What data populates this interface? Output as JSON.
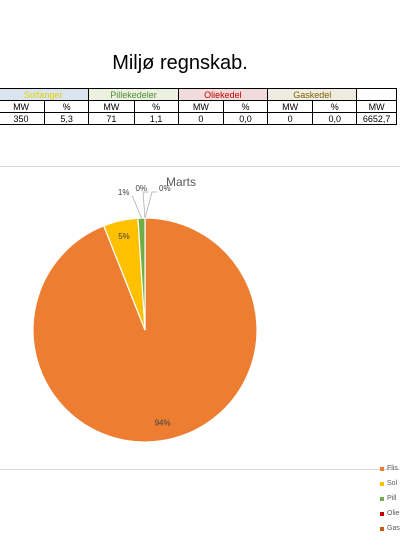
{
  "page_title": "Miljø regnskab.",
  "table": {
    "groups": [
      {
        "name": "Solfanger",
        "cls": "c-sol",
        "mw": "350",
        "pct": "5,3"
      },
      {
        "name": "Pillekedeler",
        "cls": "c-pil",
        "mw": "71",
        "pct": "1,1"
      },
      {
        "name": "Oliekedel",
        "cls": "c-oli",
        "mw": "0",
        "pct": "0,0"
      },
      {
        "name": "Gaskedel",
        "cls": "c-gas",
        "mw": "0",
        "pct": "0,0"
      }
    ],
    "mw_label": "MW",
    "pct_label": "%",
    "total_mw": "6652,7"
  },
  "chart_data": {
    "type": "pie",
    "title": "Marts",
    "series": [
      {
        "name": "Flis",
        "value": 94,
        "label": "94%",
        "color": "#ED7D31"
      },
      {
        "name": "Solfanger",
        "value": 5,
        "label": "5%",
        "color": "#FFC000"
      },
      {
        "name": "Pillekedeler",
        "value": 1,
        "label": "1%",
        "color": "#70AD47"
      },
      {
        "name": "Oliekedel",
        "value": 0,
        "label": "0%",
        "color": "#C00000"
      },
      {
        "name": "Gaskedel",
        "value": 0,
        "label": "0%",
        "color": "#C55A11"
      }
    ],
    "legend_position": "right",
    "legend_entries_visible": [
      "Flis",
      "Sol",
      "Pill",
      "Olie",
      "Gas"
    ]
  }
}
